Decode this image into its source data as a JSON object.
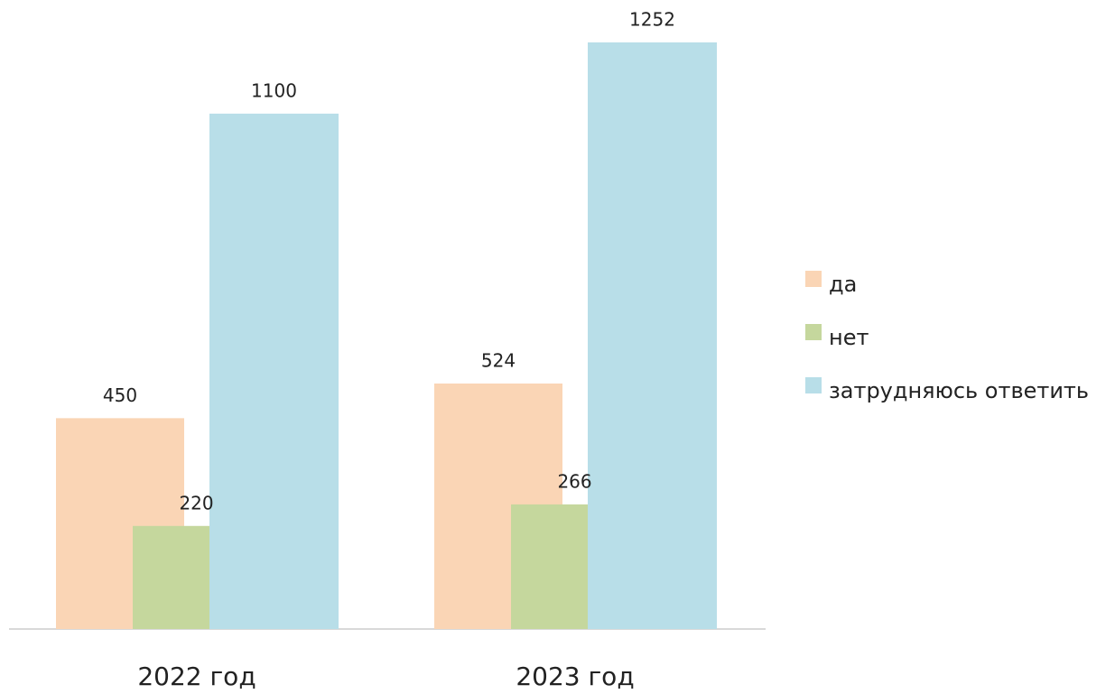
{
  "chart_data": {
    "type": "bar",
    "categories": [
      "2022 год",
      "2023 год"
    ],
    "series": [
      {
        "name": "да",
        "color": "#fad5b5",
        "values": [
          450,
          524
        ]
      },
      {
        "name": "нет",
        "color": "#c5d79d",
        "values": [
          220,
          266
        ]
      },
      {
        "name": "затрудняюсь ответить",
        "color": "#b8dee8",
        "values": [
          1100,
          1252
        ]
      }
    ],
    "legend": "right"
  }
}
